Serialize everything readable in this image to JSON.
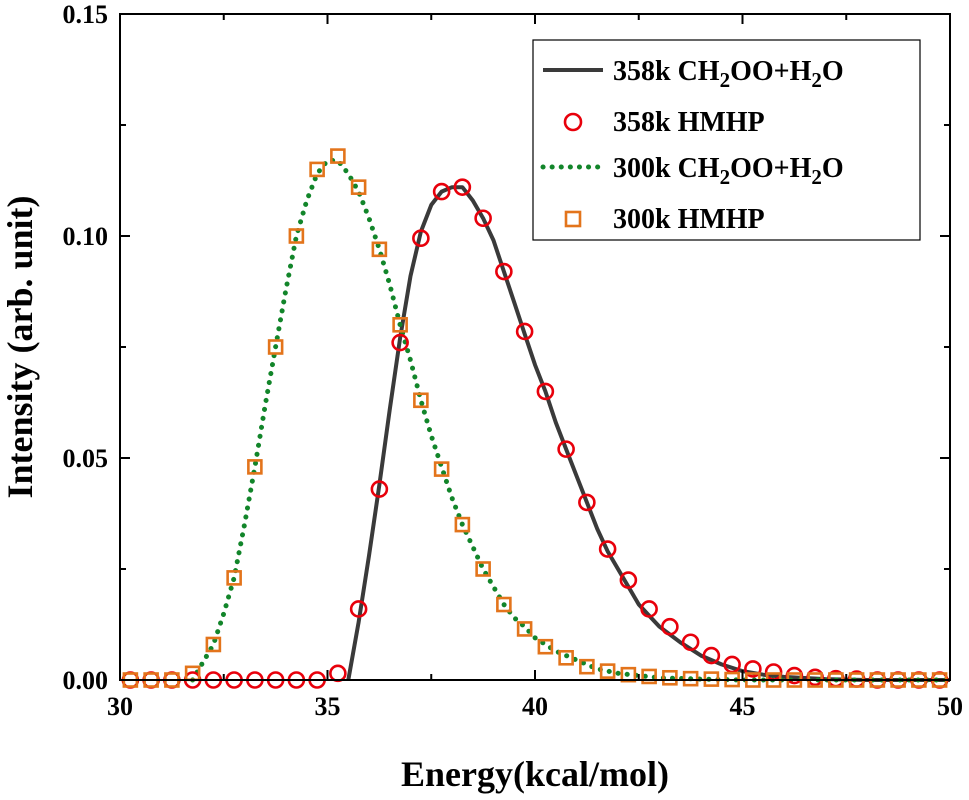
{
  "chart_data": {
    "type": "line",
    "xlabel": "Energy(kcal/mol)",
    "ylabel": "Intensity (arb. unit)",
    "xlim": [
      30,
      50
    ],
    "ylim": [
      0,
      0.15
    ],
    "xticks": [
      "30",
      "35",
      "40",
      "45",
      "50"
    ],
    "yticks": [
      "0.00",
      "0.05",
      "0.10",
      "0.15"
    ],
    "legend_position": "top-right",
    "grid": false,
    "series": [
      {
        "name": "358k CH2OO+H2O",
        "style": "solid-line",
        "color": "#3a3a3a",
        "x": [
          35.5,
          35.75,
          36.0,
          36.25,
          36.5,
          36.75,
          37.0,
          37.25,
          37.5,
          37.75,
          38.0,
          38.25,
          38.5,
          38.75,
          39.0,
          39.25,
          39.5,
          39.75,
          40.0,
          40.25,
          40.5,
          40.75,
          41.0,
          41.25,
          41.5,
          41.75,
          42.0,
          42.25,
          42.5,
          42.75,
          43.0,
          43.5,
          44.0,
          44.5,
          45.0,
          45.5,
          46.0,
          47.0,
          48.0,
          50.0
        ],
        "y": [
          0.0,
          0.013,
          0.028,
          0.044,
          0.061,
          0.077,
          0.091,
          0.101,
          0.107,
          0.11,
          0.111,
          0.111,
          0.108,
          0.104,
          0.099,
          0.092,
          0.085,
          0.078,
          0.071,
          0.065,
          0.058,
          0.052,
          0.046,
          0.04,
          0.034,
          0.029,
          0.025,
          0.021,
          0.017,
          0.0145,
          0.012,
          0.0085,
          0.0055,
          0.0035,
          0.002,
          0.0012,
          0.0007,
          0.0002,
          0.0,
          0.0
        ]
      },
      {
        "name": "358k HMHP",
        "style": "open-circle",
        "color": "#e8000b",
        "x": [
          30.25,
          30.75,
          31.25,
          31.75,
          32.25,
          32.75,
          33.25,
          33.75,
          34.25,
          34.75,
          35.25,
          35.75,
          36.25,
          36.75,
          37.25,
          37.75,
          38.25,
          38.75,
          39.25,
          39.75,
          40.25,
          40.75,
          41.25,
          41.75,
          42.25,
          42.75,
          43.25,
          43.75,
          44.25,
          44.75,
          45.25,
          45.75,
          46.25,
          46.75,
          47.25,
          47.75,
          48.25,
          48.75,
          49.25,
          49.75
        ],
        "y": [
          0.0,
          0.0,
          0.0,
          0.0,
          0.0,
          0.0,
          0.0,
          0.0,
          0.0,
          0.0,
          0.0015,
          0.016,
          0.043,
          0.076,
          0.0995,
          0.11,
          0.111,
          0.104,
          0.092,
          0.0785,
          0.065,
          0.052,
          0.04,
          0.0295,
          0.0225,
          0.016,
          0.012,
          0.0085,
          0.0055,
          0.0035,
          0.0025,
          0.0018,
          0.001,
          0.0006,
          0.0003,
          0.0002,
          0.0,
          0.0,
          0.0,
          0.0
        ]
      },
      {
        "name": "300k CH2OO+H2O",
        "style": "dotted-line",
        "color": "#12852a",
        "x": [
          31.75,
          32.0,
          32.25,
          32.5,
          32.75,
          33.0,
          33.25,
          33.5,
          33.75,
          34.0,
          34.25,
          34.5,
          34.75,
          35.0,
          35.25,
          35.5,
          35.75,
          36.0,
          36.25,
          36.5,
          36.75,
          37.0,
          37.25,
          37.5,
          37.75,
          38.0,
          38.25,
          38.5,
          38.75,
          39.0,
          39.25,
          39.5,
          39.75,
          40.0,
          40.5,
          41.0,
          41.5,
          42.0,
          42.5,
          43.0,
          44.0,
          45.0,
          46.0,
          48.0,
          50.0
        ],
        "y": [
          0.0,
          0.004,
          0.008,
          0.015,
          0.023,
          0.035,
          0.048,
          0.062,
          0.075,
          0.088,
          0.1,
          0.108,
          0.114,
          0.117,
          0.117,
          0.114,
          0.11,
          0.104,
          0.097,
          0.089,
          0.08,
          0.072,
          0.063,
          0.055,
          0.048,
          0.041,
          0.035,
          0.03,
          0.025,
          0.021,
          0.017,
          0.014,
          0.012,
          0.0095,
          0.0065,
          0.0045,
          0.0025,
          0.0015,
          0.001,
          0.0005,
          0.0002,
          0.0,
          0.0,
          0.0,
          0.0
        ]
      },
      {
        "name": "300k HMHP",
        "style": "open-square",
        "color": "#e3741b",
        "x": [
          30.25,
          30.75,
          31.25,
          31.75,
          32.25,
          32.75,
          33.25,
          33.75,
          34.25,
          34.75,
          35.25,
          35.75,
          36.25,
          36.75,
          37.25,
          37.75,
          38.25,
          38.75,
          39.25,
          39.75,
          40.25,
          40.75,
          41.25,
          41.75,
          42.25,
          42.75,
          43.25,
          43.75,
          44.25,
          44.75,
          45.25,
          45.75,
          46.25,
          46.75,
          47.25,
          47.75,
          48.25,
          48.75,
          49.25,
          49.75
        ],
        "y": [
          0.0,
          0.0,
          0.0,
          0.0015,
          0.008,
          0.023,
          0.048,
          0.075,
          0.1,
          0.115,
          0.118,
          0.111,
          0.097,
          0.08,
          0.063,
          0.0475,
          0.035,
          0.025,
          0.017,
          0.0115,
          0.0075,
          0.005,
          0.003,
          0.002,
          0.0012,
          0.0008,
          0.0005,
          0.0003,
          0.0002,
          0.0001,
          0.0,
          0.0,
          0.0,
          0.0,
          0.0,
          0.0,
          0.0,
          0.0,
          0.0,
          0.0
        ]
      }
    ]
  },
  "legend": {
    "items": [
      {
        "prefix": "358k CH",
        "sub1": "2",
        "mid": "OO+H",
        "sub2": "2",
        "suffix": "O"
      },
      {
        "prefix": "358k HMHP",
        "sub1": "",
        "mid": "",
        "sub2": "",
        "suffix": ""
      },
      {
        "prefix": "300k CH",
        "sub1": "2",
        "mid": "OO+H",
        "sub2": "2",
        "suffix": "O"
      },
      {
        "prefix": "300k HMHP",
        "sub1": "",
        "mid": "",
        "sub2": "",
        "suffix": ""
      }
    ]
  }
}
